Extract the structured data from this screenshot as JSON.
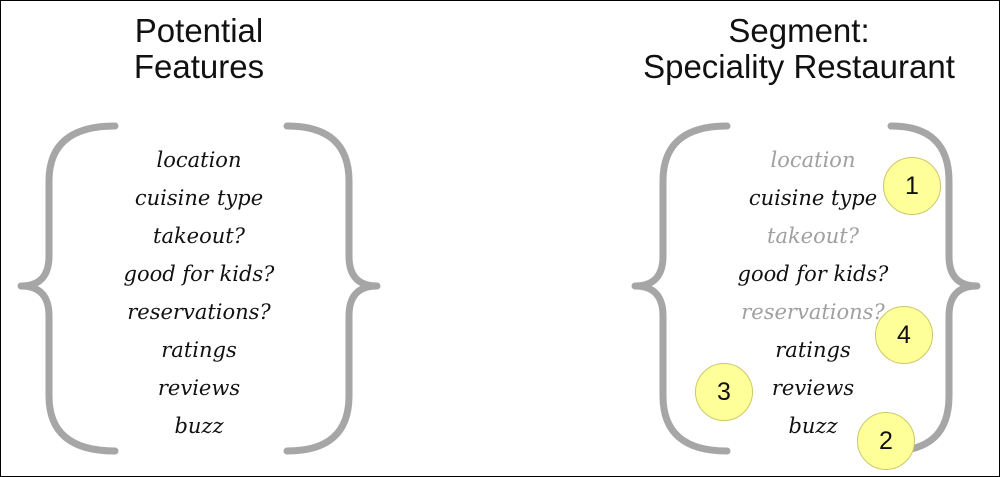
{
  "left": {
    "title_line1": "Potential",
    "title_line2": "Features",
    "features": [
      {
        "label": "location",
        "included": true
      },
      {
        "label": "cuisine type",
        "included": true
      },
      {
        "label": "takeout?",
        "included": true
      },
      {
        "label": "good for kids?",
        "included": true
      },
      {
        "label": "reservations?",
        "included": true
      },
      {
        "label": "ratings",
        "included": true
      },
      {
        "label": "reviews",
        "included": true
      },
      {
        "label": "buzz",
        "included": true
      }
    ]
  },
  "right": {
    "title_line1": "Segment:",
    "title_line2": "Speciality Restaurant",
    "features": [
      {
        "label": "location",
        "included": false
      },
      {
        "label": "cuisine type",
        "included": true
      },
      {
        "label": "takeout?",
        "included": false
      },
      {
        "label": "good for kids?",
        "included": true
      },
      {
        "label": "reservations?",
        "included": false
      },
      {
        "label": "ratings",
        "included": true
      },
      {
        "label": "reviews",
        "included": true
      },
      {
        "label": "buzz",
        "included": true
      }
    ],
    "markers": [
      {
        "label": "1",
        "feature": "cuisine type"
      },
      {
        "label": "4",
        "feature": "reservations?"
      },
      {
        "label": "3",
        "feature": "reviews"
      },
      {
        "label": "2",
        "feature": "buzz"
      }
    ]
  },
  "colors": {
    "brace": "#a6a6a6",
    "included_text": "#111111",
    "excluded_text": "#a0a0a0",
    "marker_fill": "#ffff99"
  }
}
